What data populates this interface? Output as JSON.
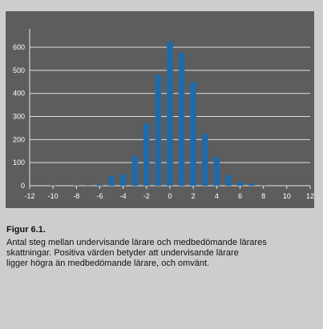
{
  "chart_data": {
    "type": "bar",
    "x": [
      -12,
      -11,
      -10,
      -9,
      -8,
      -7,
      -6,
      -5,
      -4,
      -3,
      -2,
      -1,
      0,
      1,
      2,
      3,
      4,
      5,
      6,
      7,
      8,
      9,
      10,
      11,
      12
    ],
    "values": [
      0,
      0,
      1,
      0,
      1,
      1,
      5,
      40,
      50,
      130,
      270,
      480,
      625,
      575,
      450,
      225,
      125,
      45,
      15,
      10,
      1,
      0,
      0,
      0,
      0
    ],
    "xticks": [
      -12,
      -10,
      -8,
      -6,
      -4,
      -2,
      0,
      2,
      4,
      6,
      8,
      10,
      12
    ],
    "yticks": [
      0,
      100,
      200,
      300,
      400,
      500,
      600
    ],
    "xlim": [
      -12,
      12
    ],
    "ylim": [
      0,
      680
    ],
    "grid": true,
    "bar_color": "#1f6aa9",
    "plot_background": "#5d5d5d",
    "grid_color": "#e0e0e0",
    "title": "",
    "xlabel": "",
    "ylabel": ""
  },
  "caption": {
    "title": "Figur 6.1.",
    "lines": [
      "Antal steg mellan undervisande lärare och medbedömande lärares",
      "skattningar. Positiva värden betyder att undervisande lärare",
      "ligger högra än medbedömande lärare, och omvänt."
    ]
  }
}
